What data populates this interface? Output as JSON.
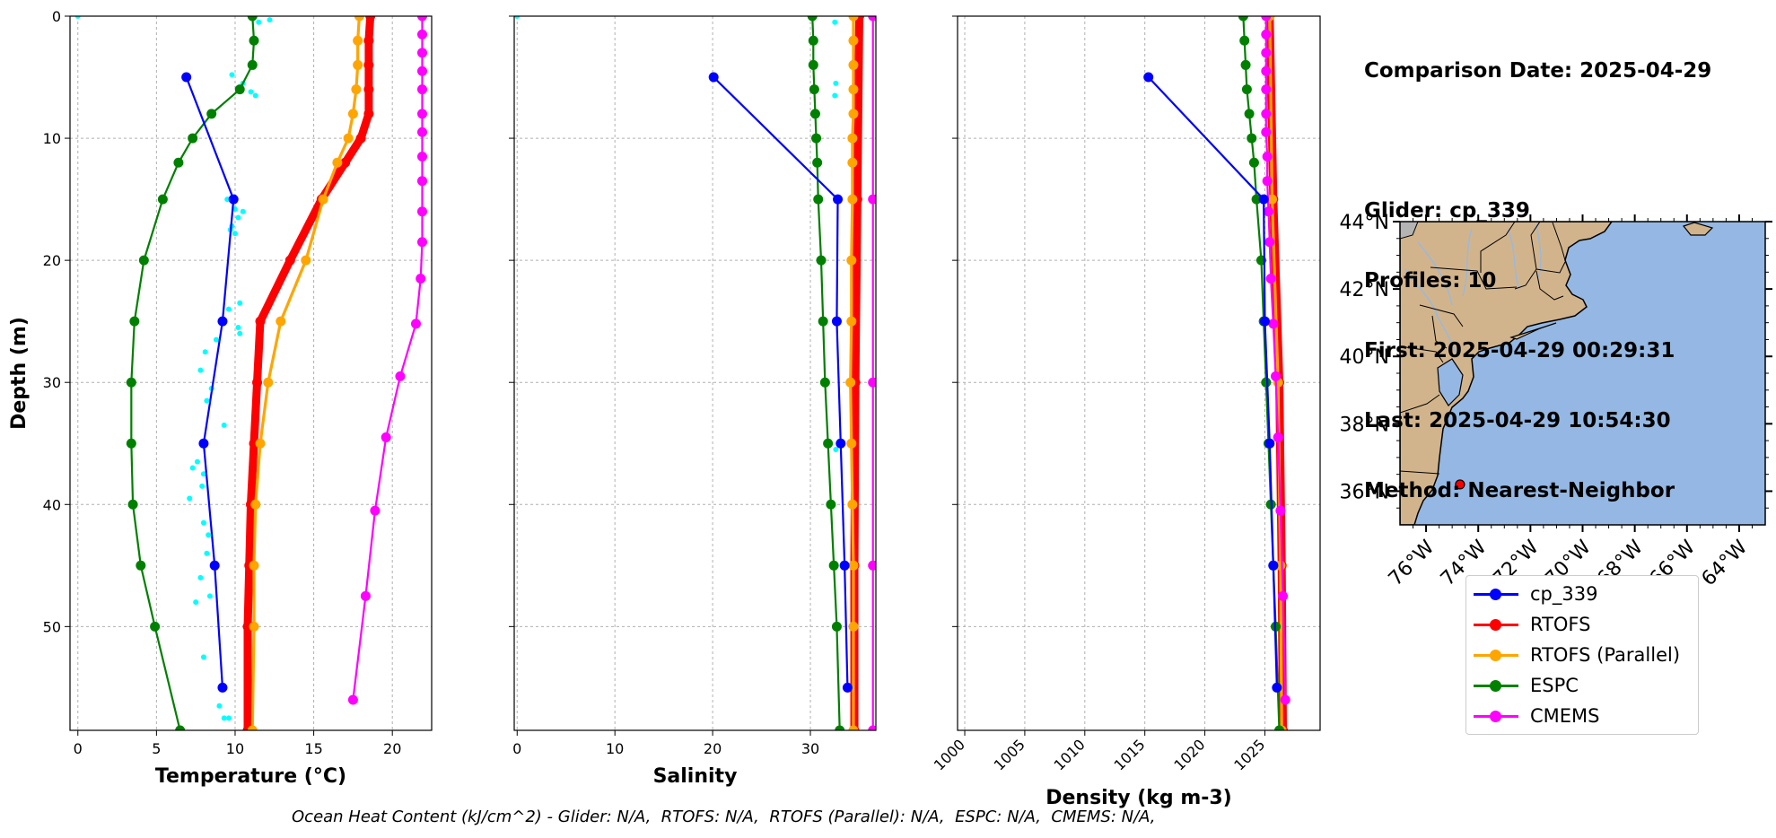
{
  "info": {
    "comparison_date": "Comparison Date: 2025-04-29",
    "glider": "Glider: cp_339",
    "profiles": "Profiles: 10",
    "first": "First: 2025-04-29 00:29:31",
    "last": "Last: 2025-04-29 10:54:30",
    "method": "Method: Nearest-Neighbor"
  },
  "footer": "Ocean Heat Content (kJ/cm^2) - Glider: N/A,  RTOFS: N/A,  RTOFS (Parallel): N/A,  ESPC: N/A,  CMEMS: N/A,",
  "colors": {
    "glider": "#0000ff",
    "glider_raw": "#00ffff",
    "rtofs": "#ff0000",
    "rtofs_parallel": "#ffa500",
    "espc": "#008000",
    "cmems": "#ff00ff",
    "grid": "#b0b0b0",
    "land": "#d2b48c",
    "ocean": "#94b8e3",
    "rivers": "#9ab8dd",
    "greatlakes": "#b4b4b4"
  },
  "legend": [
    {
      "label": "cp_339",
      "key": "glider"
    },
    {
      "label": "RTOFS",
      "key": "rtofs"
    },
    {
      "label": "RTOFS (Parallel)",
      "key": "rtofs_parallel"
    },
    {
      "label": "ESPC",
      "key": "espc"
    },
    {
      "label": "CMEMS",
      "key": "cmems"
    }
  ],
  "chart_data": [
    {
      "type": "line",
      "xlabel": "Temperature (°C)",
      "ylabel": "Depth (m)",
      "xlim": [
        -0.5,
        22.5
      ],
      "ylim": [
        58.5,
        0
      ],
      "xticks": [
        0,
        5,
        10,
        15,
        20
      ],
      "yticks": [
        0,
        10,
        20,
        30,
        40,
        50
      ],
      "grid": true,
      "series": [
        {
          "name": "cp_339",
          "key": "glider",
          "y": [
            5,
            15,
            25,
            35,
            45,
            55
          ],
          "values": [
            6.9,
            9.9,
            9.2,
            8.0,
            8.7,
            9.2
          ]
        },
        {
          "name": "RTOFS",
          "key": "rtofs",
          "y": [
            0,
            2,
            4,
            6,
            8,
            10,
            12,
            15,
            20,
            25,
            30,
            35,
            40,
            45,
            50,
            58.5
          ],
          "values": [
            18.6,
            18.5,
            18.5,
            18.5,
            18.5,
            18.0,
            17.0,
            15.5,
            13.5,
            11.6,
            11.4,
            11.2,
            11.0,
            10.9,
            10.8,
            10.8
          ]
        },
        {
          "name": "RTOFS (Parallel)",
          "key": "rtofs_parallel",
          "y": [
            0,
            2,
            4,
            6,
            8,
            10,
            12,
            15,
            20,
            25,
            30,
            35,
            40,
            45,
            50,
            58.5
          ],
          "values": [
            17.9,
            17.8,
            17.8,
            17.7,
            17.5,
            17.2,
            16.5,
            15.6,
            14.5,
            12.9,
            12.1,
            11.6,
            11.3,
            11.2,
            11.2,
            11.1
          ]
        },
        {
          "name": "ESPC",
          "key": "espc",
          "y": [
            0,
            2,
            4,
            6,
            8,
            10,
            12,
            15,
            20,
            25,
            30,
            35,
            40,
            45,
            50,
            58.5
          ],
          "values": [
            11.1,
            11.2,
            11.1,
            10.3,
            8.5,
            7.3,
            6.4,
            5.4,
            4.2,
            3.6,
            3.4,
            3.4,
            3.5,
            4.0,
            4.9,
            6.5
          ]
        },
        {
          "name": "CMEMS",
          "key": "cmems",
          "y": [
            0,
            1.5,
            3,
            4.5,
            6,
            8,
            9.5,
            11.5,
            13.5,
            16,
            18.5,
            21.5,
            25.2,
            29.5,
            34.5,
            40.5,
            47.5,
            56
          ],
          "values": [
            21.9,
            21.9,
            21.9,
            21.9,
            21.9,
            21.9,
            21.9,
            21.9,
            21.9,
            21.9,
            21.9,
            21.8,
            21.5,
            20.5,
            19.6,
            18.9,
            18.3,
            17.5
          ]
        }
      ],
      "raw_points": {
        "key": "glider_raw",
        "x": [
          0,
          11.5,
          12.2,
          9.8,
          10.5,
          11.0,
          11.3,
          9.5,
          10.0,
          10.2,
          9.8,
          10.5,
          9.7,
          10.0,
          10.3,
          9.6,
          10.2,
          10.3,
          8.8,
          8.1,
          7.8,
          8.5,
          8.2,
          9.3,
          7.6,
          8.0,
          7.3,
          7.9,
          7.1,
          8.0,
          8.3,
          8.2,
          7.8,
          8.4,
          7.5,
          8.0,
          9.0,
          9.3,
          9.6
        ],
        "y": [
          0,
          0.5,
          0.3,
          4.8,
          5.5,
          6.2,
          6.5,
          15,
          15.8,
          16.5,
          17.2,
          16.0,
          17.5,
          17.8,
          23.5,
          24.0,
          25.5,
          26.0,
          26.5,
          27.5,
          29.0,
          30.5,
          31.5,
          33.5,
          36.5,
          37.5,
          37.0,
          38.5,
          39.5,
          41.5,
          42.5,
          44.0,
          46.0,
          47.5,
          48.0,
          52.5,
          56.5,
          57.5,
          57.5
        ]
      }
    },
    {
      "type": "line",
      "xlabel": "Salinity",
      "ylim": [
        58.5,
        0
      ],
      "xlim": [
        -0.3,
        36.7
      ],
      "xticks": [
        0,
        10,
        20,
        30
      ],
      "grid": true,
      "series": [
        {
          "name": "cp_339",
          "key": "glider",
          "y": [
            5,
            15,
            25,
            35,
            45,
            55
          ],
          "values": [
            20.1,
            32.8,
            32.7,
            33.1,
            33.5,
            33.8
          ]
        },
        {
          "name": "RTOFS",
          "key": "rtofs",
          "y": [
            0,
            15,
            30,
            45,
            58.5
          ],
          "values": [
            35.0,
            34.8,
            34.6,
            34.5,
            34.5
          ]
        },
        {
          "name": "RTOFS (Parallel)",
          "key": "rtofs_parallel",
          "y": [
            0,
            2,
            4,
            6,
            8,
            10,
            12,
            15,
            20,
            25,
            30,
            35,
            40,
            45,
            50,
            58.5
          ],
          "values": [
            34.4,
            34.4,
            34.4,
            34.4,
            34.4,
            34.3,
            34.3,
            34.3,
            34.2,
            34.2,
            34.1,
            34.2,
            34.3,
            34.4,
            34.4,
            34.4
          ]
        },
        {
          "name": "ESPC",
          "key": "espc",
          "y": [
            0,
            2,
            4,
            6,
            8,
            10,
            12,
            15,
            20,
            25,
            30,
            35,
            40,
            45,
            50,
            58.5
          ],
          "values": [
            30.2,
            30.3,
            30.3,
            30.4,
            30.5,
            30.6,
            30.7,
            30.8,
            31.1,
            31.3,
            31.5,
            31.8,
            32.1,
            32.4,
            32.7,
            33.0
          ]
        },
        {
          "name": "CMEMS",
          "key": "cmems",
          "y": [
            0,
            15,
            30,
            45,
            58.5
          ],
          "values": [
            36.4,
            36.4,
            36.4,
            36.4,
            36.4
          ]
        }
      ],
      "raw_points": {
        "key": "glider_raw",
        "x": [
          0,
          32.5,
          32.6,
          32.5,
          32.6
        ],
        "y": [
          0,
          0.5,
          5.5,
          6.5,
          35.5
        ]
      }
    },
    {
      "type": "line",
      "xlabel": "Density (kg m-3)",
      "ylim": [
        58.5,
        0
      ],
      "xlim": [
        999.4,
        1029.6
      ],
      "xticks": [
        1000,
        1005,
        1010,
        1015,
        1020,
        1025
      ],
      "grid": true,
      "series": [
        {
          "name": "cp_339",
          "key": "glider",
          "y": [
            5,
            15,
            25,
            35,
            45,
            55
          ],
          "values": [
            1015.3,
            1024.9,
            1025.0,
            1025.4,
            1025.7,
            1026.0
          ]
        },
        {
          "name": "RTOFS",
          "key": "rtofs",
          "y": [
            0,
            15,
            30,
            45,
            58.5
          ],
          "values": [
            1025.4,
            1025.7,
            1026.2,
            1026.4,
            1026.5
          ]
        },
        {
          "name": "RTOFS (Parallel)",
          "key": "rtofs_parallel",
          "y": [
            0,
            15,
            30,
            45,
            58.5
          ],
          "values": [
            1025.4,
            1025.6,
            1026.1,
            1026.3,
            1026.4
          ]
        },
        {
          "name": "ESPC",
          "key": "espc",
          "y": [
            0,
            2,
            4,
            6,
            8,
            10,
            12,
            15,
            20,
            25,
            30,
            35,
            40,
            45,
            50,
            58.5
          ],
          "values": [
            1023.2,
            1023.3,
            1023.4,
            1023.5,
            1023.7,
            1023.9,
            1024.1,
            1024.3,
            1024.7,
            1024.9,
            1025.1,
            1025.3,
            1025.5,
            1025.7,
            1025.9,
            1026.2
          ]
        },
        {
          "name": "CMEMS",
          "key": "cmems",
          "y": [
            0,
            1.5,
            3,
            4.5,
            6,
            8,
            9.5,
            11.5,
            13.5,
            16,
            18.5,
            21.5,
            25.2,
            29.5,
            34.5,
            40.5,
            47.5,
            56
          ],
          "values": [
            1025.1,
            1025.1,
            1025.1,
            1025.1,
            1025.1,
            1025.1,
            1025.1,
            1025.2,
            1025.2,
            1025.3,
            1025.4,
            1025.5,
            1025.7,
            1025.9,
            1026.1,
            1026.3,
            1026.5,
            1026.7
          ]
        }
      ]
    },
    {
      "type": "map",
      "lon_ticks": [
        "76°W",
        "74°W",
        "72°W",
        "70°W",
        "68°W",
        "66°W",
        "64°W"
      ],
      "lon_values": [
        -76,
        -74,
        -72,
        -70,
        -68,
        -66,
        -64
      ],
      "lat_ticks": [
        "44°N",
        "42°N",
        "40°N",
        "38°N",
        "36°N"
      ],
      "lat_values": [
        44,
        42,
        40,
        38,
        36
      ],
      "lon_range": [
        -77,
        -63
      ],
      "lat_range": [
        35,
        44
      ],
      "glider_position": {
        "lon": -74.7,
        "lat": 36.2
      }
    }
  ]
}
